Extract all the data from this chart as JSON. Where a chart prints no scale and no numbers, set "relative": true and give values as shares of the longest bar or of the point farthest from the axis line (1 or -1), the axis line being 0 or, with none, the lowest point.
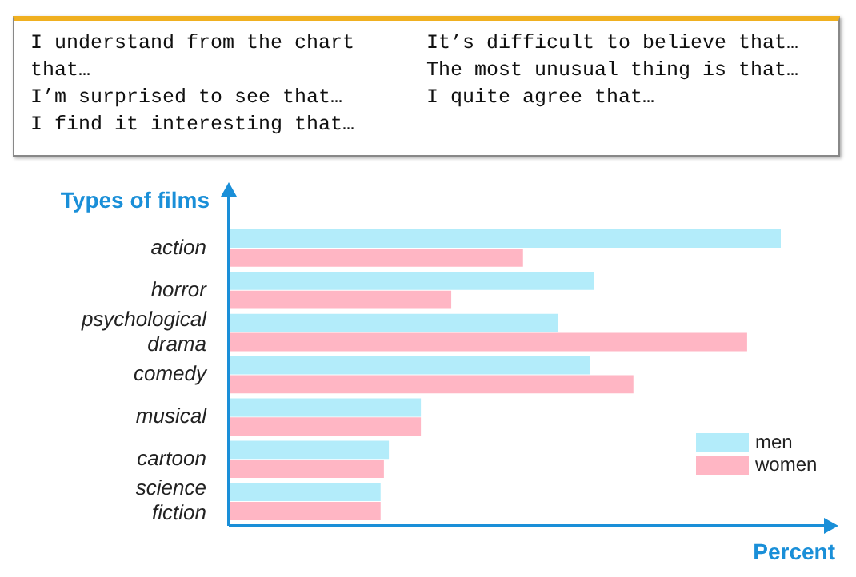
{
  "chart_data": {
    "type": "bar",
    "orientation": "horizontal",
    "relative": true,
    "xlabel": "Percent",
    "ylabel": "Types of films",
    "legend": "bottom right",
    "annotations": [
      "I understand from the chart that…",
      "I’m surprised to see that…",
      "I find it interesting that…",
      "It’s difficult to believe that…",
      "The most unusual thing is that…",
      "I quite agree that…"
    ],
    "categories": [
      "action",
      "horror",
      "psychological drama",
      "comedy",
      "musical",
      "cartoon",
      "science fiction"
    ],
    "series": [
      {
        "name": "men",
        "color": "#b3ecfa",
        "values": [
          1,
          0.661,
          0.597,
          0.655,
          0.348,
          0.29,
          0.275
        ]
      },
      {
        "name": "women",
        "color": "#ffb6c4",
        "values": [
          0.533,
          0.403,
          0.939,
          0.733,
          0.348,
          0.281,
          0.275
        ]
      }
    ]
  }
}
